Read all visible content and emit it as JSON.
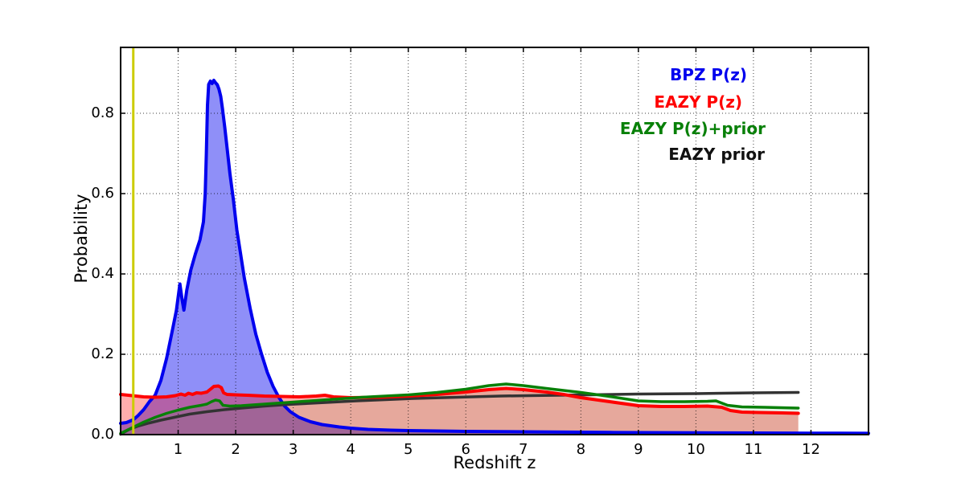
{
  "chart_data": {
    "type": "line",
    "title": "",
    "xlabel": "Redshift z",
    "ylabel": "Probability",
    "xlim": [
      0,
      13
    ],
    "ylim": [
      0,
      0.964
    ],
    "xticks": [
      1,
      2,
      3,
      4,
      5,
      6,
      7,
      8,
      9,
      10,
      11,
      12
    ],
    "yticks": [
      "0.0",
      "0.2",
      "0.4",
      "0.6",
      "0.8"
    ],
    "ytick_values": [
      0,
      0.2,
      0.4,
      0.6,
      0.8
    ],
    "grid": "dotted",
    "legend_position": "upper right",
    "vline": {
      "x": 0.22,
      "color": "#cccc00"
    },
    "series": [
      {
        "id": "bpz-pz",
        "name": "BPZ P(z)",
        "color": "#0000ee",
        "legend_color": "#0000ee",
        "fill_opacity": 0.44,
        "line_width": 4,
        "points": [
          [
            0,
            0.028
          ],
          [
            0.1,
            0.03
          ],
          [
            0.22,
            0.037
          ],
          [
            0.3,
            0.047
          ],
          [
            0.4,
            0.062
          ],
          [
            0.5,
            0.082
          ],
          [
            0.6,
            0.098
          ],
          [
            0.7,
            0.135
          ],
          [
            0.8,
            0.19
          ],
          [
            0.9,
            0.26
          ],
          [
            0.97,
            0.31
          ],
          [
            1.03,
            0.375
          ],
          [
            1.07,
            0.335
          ],
          [
            1.1,
            0.31
          ],
          [
            1.15,
            0.36
          ],
          [
            1.22,
            0.41
          ],
          [
            1.3,
            0.45
          ],
          [
            1.38,
            0.485
          ],
          [
            1.44,
            0.53
          ],
          [
            1.47,
            0.6
          ],
          [
            1.49,
            0.7
          ],
          [
            1.51,
            0.82
          ],
          [
            1.53,
            0.872
          ],
          [
            1.56,
            0.88
          ],
          [
            1.59,
            0.874
          ],
          [
            1.62,
            0.882
          ],
          [
            1.65,
            0.876
          ],
          [
            1.68,
            0.871
          ],
          [
            1.71,
            0.86
          ],
          [
            1.74,
            0.842
          ],
          [
            1.77,
            0.812
          ],
          [
            1.81,
            0.765
          ],
          [
            1.85,
            0.715
          ],
          [
            1.9,
            0.65
          ],
          [
            1.96,
            0.585
          ],
          [
            2.02,
            0.51
          ],
          [
            2.08,
            0.455
          ],
          [
            2.15,
            0.39
          ],
          [
            2.25,
            0.315
          ],
          [
            2.35,
            0.25
          ],
          [
            2.45,
            0.2
          ],
          [
            2.55,
            0.155
          ],
          [
            2.65,
            0.12
          ],
          [
            2.75,
            0.093
          ],
          [
            2.85,
            0.071
          ],
          [
            2.95,
            0.057
          ],
          [
            3.1,
            0.043
          ],
          [
            3.3,
            0.032
          ],
          [
            3.5,
            0.025
          ],
          [
            3.8,
            0.019
          ],
          [
            4,
            0.016
          ],
          [
            4.3,
            0.013
          ],
          [
            4.7,
            0.011
          ],
          [
            5,
            0.01
          ],
          [
            5.5,
            0.009
          ],
          [
            6,
            0.008
          ],
          [
            6.5,
            0.0075
          ],
          [
            7,
            0.007
          ],
          [
            7.5,
            0.0065
          ],
          [
            8,
            0.006
          ],
          [
            8.5,
            0.0055
          ],
          [
            9,
            0.005
          ],
          [
            9.5,
            0.0048
          ],
          [
            10,
            0.0045
          ],
          [
            10.5,
            0.0042
          ],
          [
            11,
            0.004
          ],
          [
            11.5,
            0.0038
          ],
          [
            12,
            0.0036
          ],
          [
            12.5,
            0.0034
          ],
          [
            13,
            0.0033
          ]
        ]
      },
      {
        "id": "eazy-pz",
        "name": "EAZY P(z)",
        "color": "#ff0000",
        "legend_color": "#ff0000",
        "fill_opacity": 0.32,
        "line_width": 4,
        "points": [
          [
            0,
            0.1
          ],
          [
            0.2,
            0.097
          ],
          [
            0.4,
            0.094
          ],
          [
            0.6,
            0.093
          ],
          [
            0.8,
            0.094
          ],
          [
            0.95,
            0.097
          ],
          [
            1.05,
            0.101
          ],
          [
            1.12,
            0.098
          ],
          [
            1.18,
            0.103
          ],
          [
            1.25,
            0.1
          ],
          [
            1.32,
            0.104
          ],
          [
            1.4,
            0.103
          ],
          [
            1.5,
            0.106
          ],
          [
            1.57,
            0.114
          ],
          [
            1.62,
            0.12
          ],
          [
            1.7,
            0.121
          ],
          [
            1.75,
            0.117
          ],
          [
            1.79,
            0.104
          ],
          [
            1.85,
            0.1
          ],
          [
            2,
            0.099
          ],
          [
            2.2,
            0.098
          ],
          [
            2.5,
            0.096
          ],
          [
            2.8,
            0.095
          ],
          [
            3.1,
            0.094
          ],
          [
            3.4,
            0.096
          ],
          [
            3.55,
            0.098
          ],
          [
            3.7,
            0.094
          ],
          [
            4,
            0.092
          ],
          [
            4.5,
            0.093
          ],
          [
            5,
            0.096
          ],
          [
            5.5,
            0.1
          ],
          [
            6,
            0.106
          ],
          [
            6.4,
            0.112
          ],
          [
            6.7,
            0.115
          ],
          [
            7,
            0.112
          ],
          [
            7.4,
            0.106
          ],
          [
            7.7,
            0.1
          ],
          [
            8,
            0.092
          ],
          [
            8.5,
            0.082
          ],
          [
            9,
            0.072
          ],
          [
            9.4,
            0.07
          ],
          [
            9.8,
            0.07
          ],
          [
            10.2,
            0.071
          ],
          [
            10.45,
            0.068
          ],
          [
            10.6,
            0.06
          ],
          [
            10.8,
            0.056
          ],
          [
            11.1,
            0.055
          ],
          [
            11.5,
            0.054
          ],
          [
            11.78,
            0.053
          ]
        ]
      },
      {
        "id": "eazy-pz-prior",
        "name": "EAZY P(z)+prior",
        "color": "#088008",
        "legend_color": "#088008",
        "fill_opacity": 0.1,
        "line_width": 3.5,
        "points": [
          [
            0,
            0.003
          ],
          [
            0.2,
            0.017
          ],
          [
            0.4,
            0.031
          ],
          [
            0.6,
            0.043
          ],
          [
            0.8,
            0.053
          ],
          [
            1,
            0.061
          ],
          [
            1.2,
            0.068
          ],
          [
            1.4,
            0.073
          ],
          [
            1.5,
            0.076
          ],
          [
            1.58,
            0.082
          ],
          [
            1.65,
            0.086
          ],
          [
            1.72,
            0.084
          ],
          [
            1.78,
            0.073
          ],
          [
            1.9,
            0.071
          ],
          [
            2.1,
            0.072
          ],
          [
            2.4,
            0.075
          ],
          [
            2.7,
            0.078
          ],
          [
            3,
            0.081
          ],
          [
            3.4,
            0.085
          ],
          [
            3.8,
            0.089
          ],
          [
            4.2,
            0.093
          ],
          [
            4.6,
            0.096
          ],
          [
            5,
            0.099
          ],
          [
            5.5,
            0.105
          ],
          [
            6,
            0.113
          ],
          [
            6.4,
            0.122
          ],
          [
            6.7,
            0.126
          ],
          [
            7,
            0.122
          ],
          [
            7.4,
            0.115
          ],
          [
            7.7,
            0.11
          ],
          [
            8,
            0.105
          ],
          [
            8.5,
            0.095
          ],
          [
            9,
            0.084
          ],
          [
            9.4,
            0.082
          ],
          [
            9.8,
            0.082
          ],
          [
            10.2,
            0.083
          ],
          [
            10.35,
            0.084
          ],
          [
            10.55,
            0.073
          ],
          [
            10.8,
            0.069
          ],
          [
            11.2,
            0.068
          ],
          [
            11.78,
            0.066
          ]
        ]
      },
      {
        "id": "eazy-prior",
        "name": "EAZY prior",
        "color": "#333333",
        "legend_color": "#111111",
        "fill_opacity": 0,
        "line_width": 3.5,
        "points": [
          [
            0,
            0.001
          ],
          [
            0.15,
            0.013
          ],
          [
            0.3,
            0.021
          ],
          [
            0.5,
            0.029
          ],
          [
            0.7,
            0.036
          ],
          [
            1,
            0.045
          ],
          [
            1.2,
            0.051
          ],
          [
            1.5,
            0.057
          ],
          [
            1.8,
            0.062
          ],
          [
            2.1,
            0.066
          ],
          [
            2.5,
            0.071
          ],
          [
            2.9,
            0.075
          ],
          [
            3.3,
            0.078
          ],
          [
            3.7,
            0.081
          ],
          [
            4.1,
            0.084
          ],
          [
            4.6,
            0.087
          ],
          [
            5.1,
            0.09
          ],
          [
            5.6,
            0.092
          ],
          [
            6.1,
            0.094
          ],
          [
            6.6,
            0.096
          ],
          [
            7.1,
            0.097
          ],
          [
            7.6,
            0.098
          ],
          [
            8.1,
            0.099
          ],
          [
            9,
            0.101
          ],
          [
            10,
            0.102
          ],
          [
            11,
            0.104
          ],
          [
            11.78,
            0.105
          ]
        ]
      }
    ]
  }
}
